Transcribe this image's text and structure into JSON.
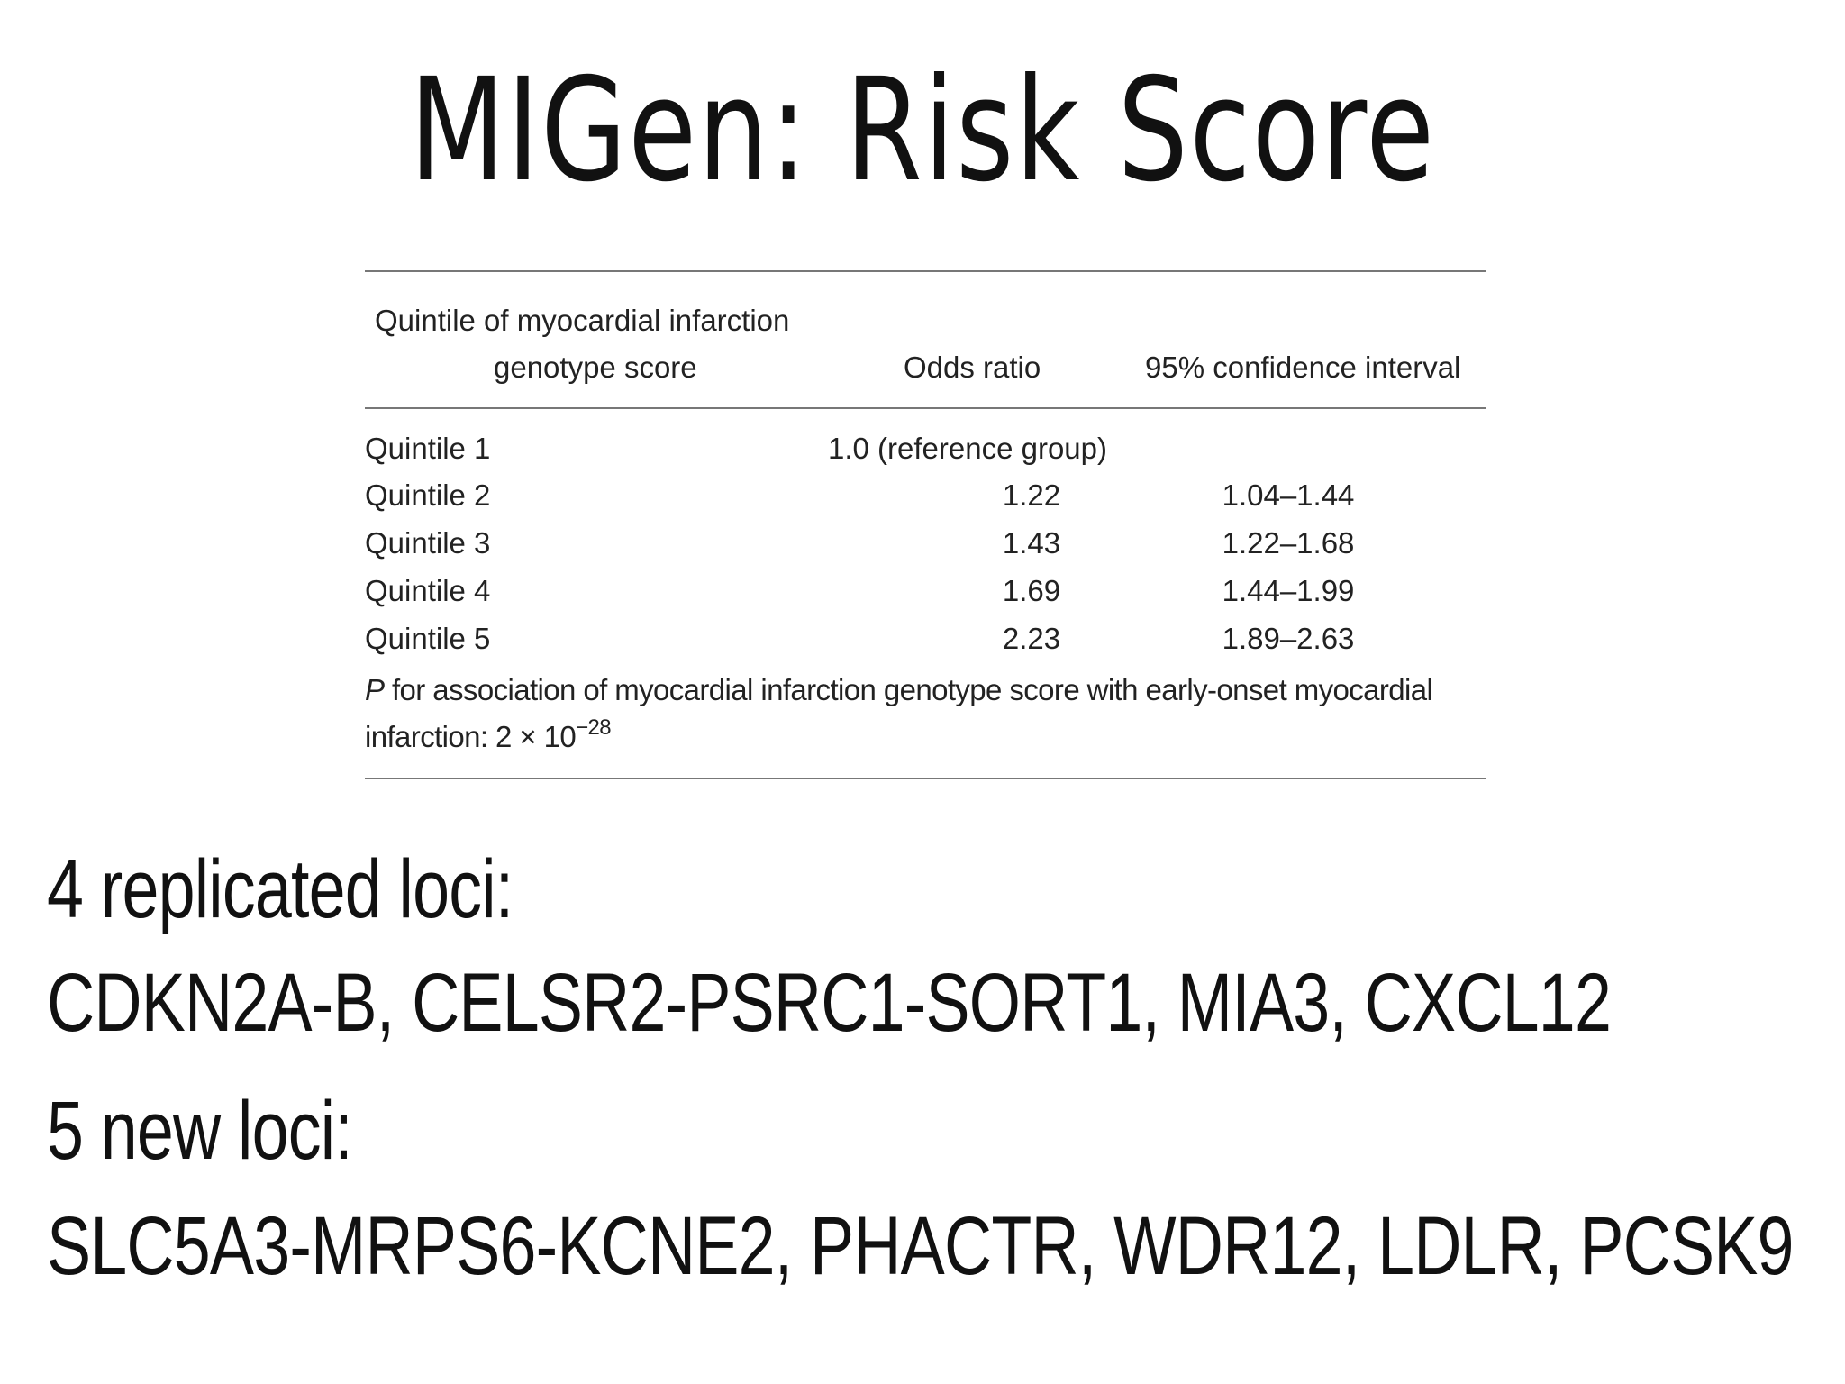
{
  "title": "MIGen: Risk Score",
  "table": {
    "header": {
      "quintile_line1": "Quintile of myocardial infarction",
      "quintile_line2": "genotype score",
      "odds_ratio": "Odds ratio",
      "ci": "95% confidence interval"
    },
    "rows": [
      {
        "label": "Quintile 1",
        "odds_ratio": "1.0 (reference group)",
        "ci": ""
      },
      {
        "label": "Quintile 2",
        "odds_ratio": "1.22",
        "ci": "1.04–1.44"
      },
      {
        "label": "Quintile 3",
        "odds_ratio": "1.43",
        "ci": "1.22–1.68"
      },
      {
        "label": "Quintile 4",
        "odds_ratio": "1.69",
        "ci": "1.44–1.99"
      },
      {
        "label": "Quintile 5",
        "odds_ratio": "2.23",
        "ci": "1.89–2.63"
      }
    ],
    "footnote": {
      "p_symbol": "P",
      "text_line1": " for association of myocardial infarction genotype score with early-onset myocardial",
      "text_line2": "infarction: 2 × 10",
      "exponent": "−28"
    }
  },
  "loci": {
    "replicated_heading": "4 replicated loci:",
    "replicated_list": "CDKN2A-B, CELSR2-PSRC1-SORT1, MIA3, CXCL12",
    "new_heading": "5 new loci:",
    "new_list": "SLC5A3-MRPS6-KCNE2, PHACTR,  WDR12, LDLR, PCSK9"
  }
}
